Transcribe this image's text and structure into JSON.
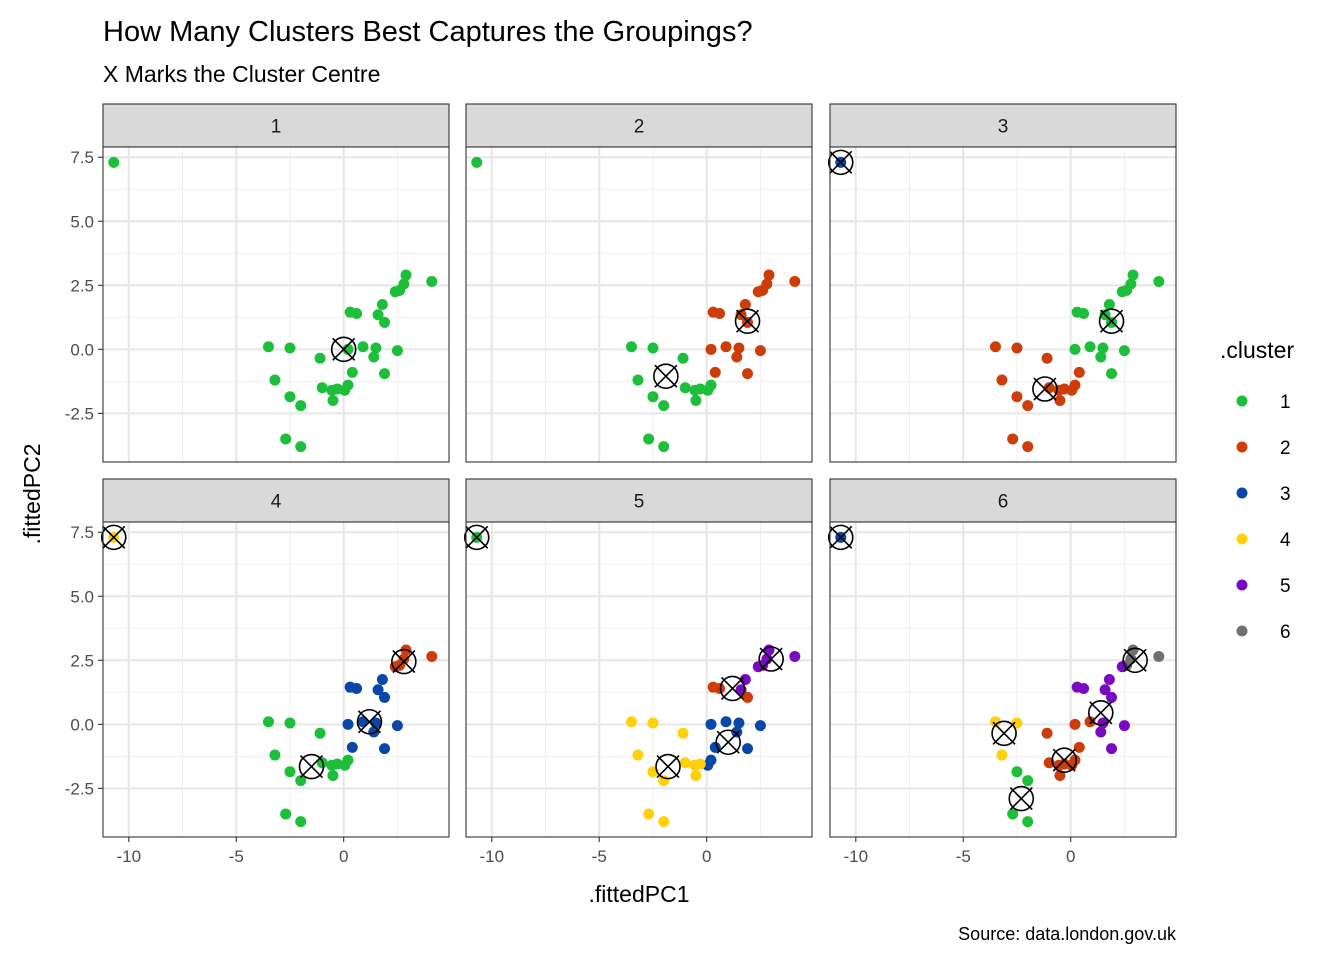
{
  "chart_data": {
    "type": "scatter",
    "title": "How Many Clusters Best Captures the Groupings?",
    "subtitle": "X Marks the Cluster Centre",
    "caption": "Source: data.london.gov.uk",
    "xlabel": ".fittedPC1",
    "ylabel": ".fittedPC2",
    "xlim": [
      -11.2,
      4.9
    ],
    "ylim": [
      -4.4,
      7.9
    ],
    "x_ticks": [
      -10,
      -5,
      0
    ],
    "x_tick_labels": [
      "-10",
      "-5",
      "0"
    ],
    "y_ticks": [
      -2.5,
      0.0,
      2.5,
      5.0,
      7.5
    ],
    "y_tick_labels": [
      "-2.5",
      "0.0",
      "2.5",
      "5.0",
      "7.5"
    ],
    "grid": true,
    "facet_by": "k",
    "legend": {
      "title": ".cluster",
      "placement": "right",
      "entries": [
        {
          "label": "1",
          "color": "#1DBE3A"
        },
        {
          "label": "2",
          "color": "#CC3D0A"
        },
        {
          "label": "3",
          "color": "#0A47A8"
        },
        {
          "label": "4",
          "color": "#FFD10A"
        },
        {
          "label": "5",
          "color": "#7A0AC2"
        },
        {
          "label": "6",
          "color": "#707070"
        }
      ]
    },
    "points": [
      {
        "x": -10.7,
        "y": 7.3,
        "c": [
          1,
          1,
          3,
          4,
          1,
          3
        ]
      },
      {
        "x": 4.1,
        "y": 2.65,
        "c": [
          1,
          2,
          1,
          2,
          5,
          6
        ]
      },
      {
        "x": 2.9,
        "y": 2.9,
        "c": [
          1,
          2,
          1,
          2,
          5,
          6
        ]
      },
      {
        "x": 2.8,
        "y": 2.55,
        "c": [
          1,
          2,
          1,
          2,
          5,
          6
        ]
      },
      {
        "x": 2.6,
        "y": 2.3,
        "c": [
          1,
          2,
          1,
          2,
          5,
          6
        ]
      },
      {
        "x": 2.4,
        "y": 2.25,
        "c": [
          1,
          2,
          1,
          2,
          5,
          5
        ]
      },
      {
        "x": 1.8,
        "y": 1.75,
        "c": [
          1,
          2,
          1,
          3,
          5,
          5
        ]
      },
      {
        "x": 1.6,
        "y": 1.35,
        "c": [
          1,
          2,
          1,
          3,
          5,
          5
        ]
      },
      {
        "x": 1.9,
        "y": 1.05,
        "c": [
          1,
          2,
          1,
          3,
          2,
          5
        ]
      },
      {
        "x": 0.3,
        "y": 1.45,
        "c": [
          1,
          2,
          1,
          3,
          2,
          5
        ]
      },
      {
        "x": 0.6,
        "y": 1.4,
        "c": [
          1,
          2,
          1,
          3,
          2,
          5
        ]
      },
      {
        "x": 2.5,
        "y": -0.05,
        "c": [
          1,
          2,
          1,
          3,
          3,
          5
        ]
      },
      {
        "x": 1.5,
        "y": 0.05,
        "c": [
          1,
          2,
          1,
          3,
          3,
          5
        ]
      },
      {
        "x": 0.9,
        "y": 0.1,
        "c": [
          1,
          2,
          1,
          3,
          3,
          2
        ]
      },
      {
        "x": 1.4,
        "y": -0.3,
        "c": [
          1,
          2,
          1,
          3,
          3,
          5
        ]
      },
      {
        "x": 0.2,
        "y": 0.0,
        "c": [
          1,
          2,
          1,
          3,
          3,
          2
        ]
      },
      {
        "x": 0.4,
        "y": -0.9,
        "c": [
          1,
          2,
          2,
          3,
          3,
          2
        ]
      },
      {
        "x": 1.9,
        "y": -0.95,
        "c": [
          1,
          2,
          1,
          3,
          3,
          5
        ]
      },
      {
        "x": 0.2,
        "y": -1.4,
        "c": [
          1,
          1,
          2,
          1,
          3,
          2
        ]
      },
      {
        "x": 0.05,
        "y": -1.6,
        "c": [
          1,
          1,
          2,
          1,
          3,
          2
        ]
      },
      {
        "x": -0.3,
        "y": -1.55,
        "c": [
          1,
          1,
          2,
          1,
          4,
          2
        ]
      },
      {
        "x": -0.55,
        "y": -1.6,
        "c": [
          1,
          1,
          2,
          1,
          4,
          2
        ]
      },
      {
        "x": -0.5,
        "y": -2.0,
        "c": [
          1,
          1,
          2,
          1,
          4,
          2
        ]
      },
      {
        "x": -1.0,
        "y": -1.5,
        "c": [
          1,
          1,
          2,
          1,
          4,
          2
        ]
      },
      {
        "x": -1.1,
        "y": -0.35,
        "c": [
          1,
          1,
          2,
          1,
          4,
          2
        ]
      },
      {
        "x": -2.5,
        "y": 0.05,
        "c": [
          1,
          1,
          2,
          1,
          4,
          4
        ]
      },
      {
        "x": -3.5,
        "y": 0.1,
        "c": [
          1,
          1,
          2,
          1,
          4,
          4
        ]
      },
      {
        "x": -3.2,
        "y": -1.2,
        "c": [
          1,
          1,
          2,
          1,
          4,
          4
        ]
      },
      {
        "x": -2.5,
        "y": -1.85,
        "c": [
          1,
          1,
          2,
          1,
          4,
          1
        ]
      },
      {
        "x": -2.0,
        "y": -2.2,
        "c": [
          1,
          1,
          2,
          1,
          4,
          1
        ]
      },
      {
        "x": -2.7,
        "y": -3.5,
        "c": [
          1,
          1,
          2,
          1,
          4,
          1
        ]
      },
      {
        "x": -2.0,
        "y": -3.8,
        "c": [
          1,
          1,
          2,
          1,
          4,
          1
        ]
      }
    ],
    "panels": [
      {
        "label": "1",
        "centers": [
          {
            "x": 0.0,
            "y": 0.0
          }
        ]
      },
      {
        "label": "2",
        "centers": [
          {
            "x": 1.9,
            "y": 1.1
          },
          {
            "x": -1.9,
            "y": -1.05
          }
        ]
      },
      {
        "label": "3",
        "centers": [
          {
            "x": -10.7,
            "y": 7.3
          },
          {
            "x": 1.9,
            "y": 1.1
          },
          {
            "x": -1.2,
            "y": -1.55
          }
        ]
      },
      {
        "label": "4",
        "centers": [
          {
            "x": -10.7,
            "y": 7.3
          },
          {
            "x": 2.8,
            "y": 2.45
          },
          {
            "x": 1.2,
            "y": 0.1
          },
          {
            "x": -1.5,
            "y": -1.65
          }
        ]
      },
      {
        "label": "5",
        "centers": [
          {
            "x": -10.7,
            "y": 7.3
          },
          {
            "x": 3.0,
            "y": 2.55
          },
          {
            "x": 1.2,
            "y": 1.4
          },
          {
            "x": 1.0,
            "y": -0.7
          },
          {
            "x": -1.8,
            "y": -1.65
          }
        ]
      },
      {
        "label": "6",
        "centers": [
          {
            "x": -10.7,
            "y": 7.3
          },
          {
            "x": 3.0,
            "y": 2.5
          },
          {
            "x": 1.4,
            "y": 0.45
          },
          {
            "x": -0.3,
            "y": -1.4
          },
          {
            "x": -3.1,
            "y": -0.35
          },
          {
            "x": -2.3,
            "y": -2.9
          }
        ]
      }
    ]
  }
}
